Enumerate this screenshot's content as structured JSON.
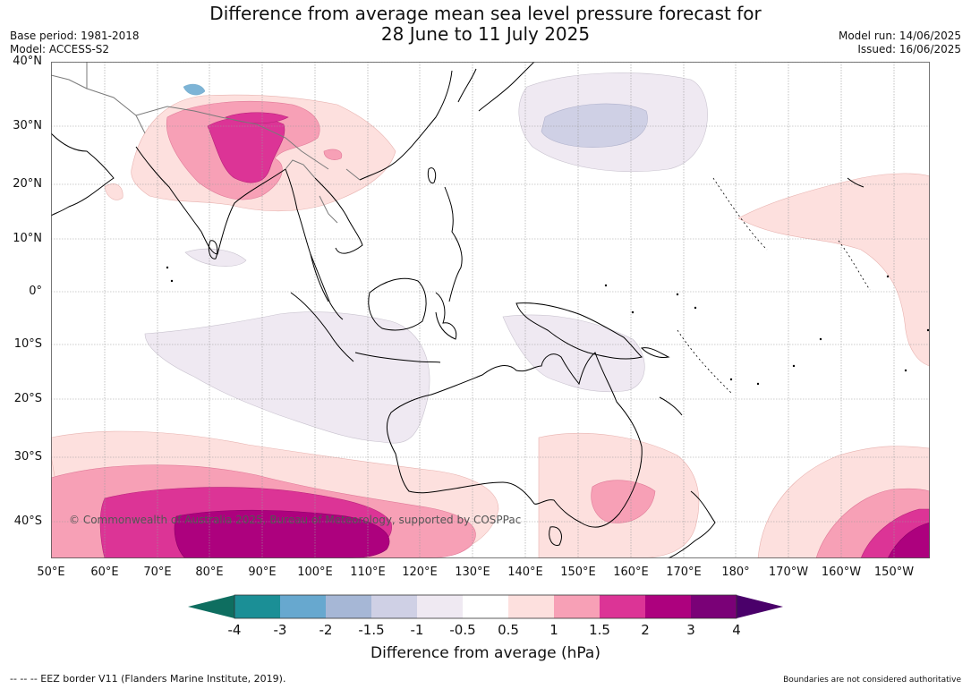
{
  "header": {
    "title_line1": "Difference from average mean sea level pressure forecast for",
    "title_line2": "28 June to 11 July 2025",
    "base_period": "Base period: 1981-2018",
    "model": "Model: ACCESS-S2",
    "model_run": "Model run: 14/06/2025",
    "issued": "Issued: 16/06/2025"
  },
  "map": {
    "lat_labels": [
      "40°N",
      "30°N",
      "20°N",
      "10°N",
      "0°",
      "10°S",
      "20°S",
      "30°S",
      "40°S"
    ],
    "lon_labels": [
      "50°E",
      "60°E",
      "70°E",
      "80°E",
      "90°E",
      "100°E",
      "110°E",
      "120°E",
      "130°E",
      "140°E",
      "150°E",
      "160°E",
      "170°E",
      "180°",
      "170°W",
      "160°W",
      "150°W"
    ],
    "copyright": "© Commonwealth of Australia 2025, Bureau of Meteorology, supported by COSPPac",
    "land_color": "#000000",
    "grid_color": "#9a9a9a"
  },
  "colorbar": {
    "ticks": [
      "-4",
      "-3",
      "-2",
      "-1.5",
      "-1",
      "-0.5",
      "0.5",
      "1",
      "1.5",
      "2",
      "3",
      "4"
    ],
    "colors": [
      "#0e6e60",
      "#1b8f96",
      "#67a8cf",
      "#a6b7d6",
      "#cfd0e5",
      "#efe9f2",
      "#ffffff",
      "#fde0de",
      "#f7a0b6",
      "#dc3496",
      "#ad017e",
      "#7a0177",
      "#4a006a"
    ],
    "label": "Difference from average (hPa)"
  },
  "footer": {
    "eez_note": "--  --  -- EEZ border V11 (Flanders Marine Institute, 2019).",
    "disclaimer": "Boundaries are not considered authoritative"
  }
}
